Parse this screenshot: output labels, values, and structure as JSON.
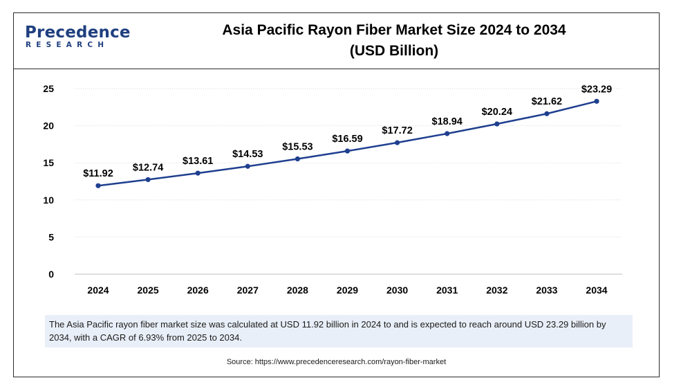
{
  "header": {
    "logo_main": "Precedence",
    "logo_sub": "RESEARCH",
    "title_line1": "Asia Pacific Rayon Fiber Market Size 2024 to 2034",
    "title_line2": "(USD Billion)"
  },
  "chart_data": {
    "type": "line",
    "title": "Asia Pacific Rayon Fiber Market Size 2024 to 2034 (USD Billion)",
    "xlabel": "",
    "ylabel": "",
    "categories": [
      "2024",
      "2025",
      "2026",
      "2027",
      "2028",
      "2029",
      "2030",
      "2031",
      "2032",
      "2033",
      "2034"
    ],
    "series": [
      {
        "values": [
          11.92,
          12.74,
          13.61,
          14.53,
          15.53,
          16.59,
          17.72,
          18.94,
          20.24,
          21.62,
          23.29
        ],
        "labels": [
          "$11.92",
          "$12.74",
          "$13.61",
          "$14.53",
          "$15.53",
          "$16.59",
          "$17.72",
          "$18.94",
          "$20.24",
          "$21.62",
          "$23.29"
        ],
        "color": "#1f3f8f"
      }
    ],
    "ylim": [
      0,
      25
    ],
    "yticks": [
      "0",
      "5",
      "10",
      "15",
      "20",
      "25"
    ],
    "grid": true,
    "legend": "none"
  },
  "caption": "The Asia Pacific  rayon fiber market  size was calculated at USD 11.92 billion in 2024 to and is expected to reach around USD 23.29 billion by 2034, with a CAGR of 6.93% from 2025 to 2034.",
  "source": "Source: https://www.precedenceresearch.com/rayon-fiber-market",
  "colors": {
    "line": "#1f3f8f",
    "caption_bg": "#e9eff8",
    "brand": "#1f3f7f"
  }
}
